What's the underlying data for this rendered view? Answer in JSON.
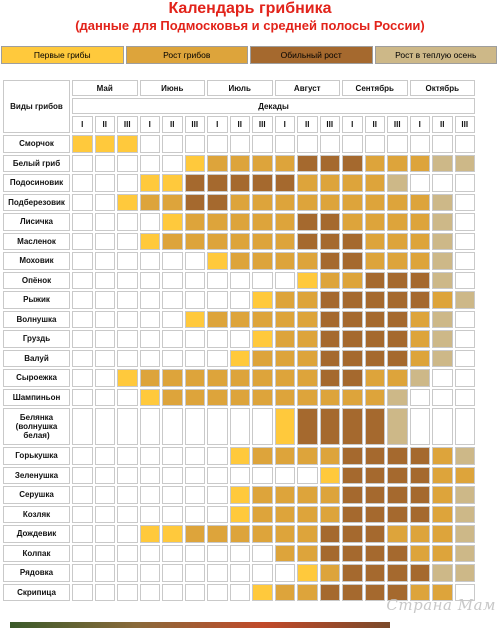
{
  "title": {
    "line1": "Календарь грибника",
    "line2": "(данные для Подмосковья и средней полосы России)"
  },
  "legend": [
    {
      "label": "Первые грибы",
      "color": "#ffc93c"
    },
    {
      "label": "Рост грибов",
      "color": "#dda43b"
    },
    {
      "label": "Обильный рост",
      "color": "#a5692e"
    },
    {
      "label": "Рост в теплую осень",
      "color": "#cdb888"
    }
  ],
  "header": {
    "species_label": "Виды грибов",
    "decades_label": "Декады",
    "months": [
      "Май",
      "Июнь",
      "Июль",
      "Август",
      "Сентябрь",
      "Октябрь"
    ],
    "decades": [
      "I",
      "II",
      "III"
    ]
  },
  "colors": {
    "first": "#ffc93c",
    "growth": "#dda43b",
    "abundant": "#a5692e",
    "warm_autumn": "#cdb888",
    "title": "#e2231a"
  },
  "rows": [
    {
      "name": "Сморчок",
      "cells": [
        1,
        1,
        1,
        0,
        0,
        0,
        0,
        0,
        0,
        0,
        0,
        0,
        0,
        0,
        0,
        0,
        0,
        0
      ]
    },
    {
      "name": "Белый гриб",
      "cells": [
        0,
        0,
        0,
        0,
        0,
        1,
        2,
        2,
        2,
        2,
        3,
        3,
        3,
        2,
        2,
        2,
        4,
        4
      ]
    },
    {
      "name": "Подосиновик",
      "cells": [
        0,
        0,
        0,
        1,
        1,
        3,
        3,
        3,
        3,
        3,
        2,
        2,
        2,
        2,
        4,
        0,
        0,
        0
      ]
    },
    {
      "name": "Подберезовик",
      "cells": [
        0,
        0,
        1,
        2,
        2,
        3,
        3,
        2,
        2,
        2,
        2,
        2,
        2,
        2,
        2,
        2,
        4,
        0
      ]
    },
    {
      "name": "Лисичка",
      "cells": [
        0,
        0,
        0,
        0,
        1,
        2,
        2,
        2,
        2,
        2,
        3,
        3,
        2,
        2,
        2,
        2,
        4,
        0
      ]
    },
    {
      "name": "Масленок",
      "cells": [
        0,
        0,
        0,
        1,
        2,
        2,
        2,
        2,
        2,
        2,
        3,
        3,
        3,
        2,
        2,
        2,
        4,
        0
      ]
    },
    {
      "name": "Моховик",
      "cells": [
        0,
        0,
        0,
        0,
        0,
        0,
        1,
        2,
        2,
        2,
        2,
        3,
        3,
        2,
        2,
        2,
        4,
        0
      ]
    },
    {
      "name": "Опёнок",
      "cells": [
        0,
        0,
        0,
        0,
        0,
        0,
        0,
        0,
        0,
        0,
        1,
        2,
        2,
        3,
        3,
        3,
        4,
        0
      ]
    },
    {
      "name": "Рыжик",
      "cells": [
        0,
        0,
        0,
        0,
        0,
        0,
        0,
        0,
        1,
        2,
        2,
        3,
        3,
        3,
        3,
        3,
        2,
        4
      ]
    },
    {
      "name": "Волнушка",
      "cells": [
        0,
        0,
        0,
        0,
        0,
        1,
        2,
        2,
        2,
        2,
        2,
        3,
        3,
        3,
        3,
        2,
        4,
        0
      ]
    },
    {
      "name": "Груздь",
      "cells": [
        0,
        0,
        0,
        0,
        0,
        0,
        0,
        0,
        1,
        2,
        2,
        3,
        3,
        3,
        3,
        2,
        4,
        0
      ]
    },
    {
      "name": "Валуй",
      "cells": [
        0,
        0,
        0,
        0,
        0,
        0,
        0,
        1,
        2,
        2,
        2,
        3,
        3,
        3,
        3,
        2,
        4,
        0
      ]
    },
    {
      "name": "Сыроежка",
      "cells": [
        0,
        0,
        1,
        2,
        2,
        2,
        2,
        2,
        2,
        2,
        2,
        3,
        3,
        2,
        2,
        4,
        0,
        0
      ]
    },
    {
      "name": "Шампиньон",
      "cells": [
        0,
        0,
        0,
        1,
        2,
        2,
        2,
        2,
        2,
        2,
        2,
        2,
        2,
        2,
        4,
        0,
        0,
        0
      ]
    },
    {
      "name": "Белянка (волнушка белая)",
      "cells": [
        0,
        0,
        0,
        0,
        0,
        0,
        0,
        0,
        0,
        1,
        3,
        3,
        3,
        3,
        4,
        0,
        0,
        0
      ],
      "tall": true
    },
    {
      "name": "Горькушка",
      "cells": [
        0,
        0,
        0,
        0,
        0,
        0,
        0,
        1,
        2,
        2,
        2,
        2,
        3,
        3,
        3,
        3,
        2,
        4
      ]
    },
    {
      "name": "Зеленушка",
      "cells": [
        0,
        0,
        0,
        0,
        0,
        0,
        0,
        0,
        0,
        0,
        0,
        1,
        3,
        3,
        3,
        3,
        2,
        2
      ]
    },
    {
      "name": "Серушка",
      "cells": [
        0,
        0,
        0,
        0,
        0,
        0,
        0,
        1,
        2,
        2,
        2,
        2,
        3,
        3,
        3,
        3,
        2,
        4
      ]
    },
    {
      "name": "Козляк",
      "cells": [
        0,
        0,
        0,
        0,
        0,
        0,
        0,
        1,
        2,
        2,
        2,
        2,
        3,
        3,
        3,
        3,
        2,
        4
      ]
    },
    {
      "name": "Дождевик",
      "cells": [
        0,
        0,
        0,
        1,
        1,
        2,
        2,
        2,
        2,
        2,
        2,
        3,
        3,
        3,
        2,
        2,
        2,
        4
      ]
    },
    {
      "name": "Колпак",
      "cells": [
        0,
        0,
        0,
        0,
        0,
        0,
        0,
        0,
        0,
        2,
        2,
        3,
        3,
        3,
        3,
        2,
        2,
        4
      ]
    },
    {
      "name": "Рядовка",
      "cells": [
        0,
        0,
        0,
        0,
        0,
        0,
        0,
        0,
        0,
        0,
        1,
        2,
        3,
        3,
        3,
        3,
        4,
        4
      ]
    },
    {
      "name": "Скрипица",
      "cells": [
        0,
        0,
        0,
        0,
        0,
        0,
        0,
        0,
        1,
        2,
        2,
        3,
        3,
        3,
        3,
        2,
        2,
        0
      ]
    }
  ],
  "watermark": "Страна Мам"
}
